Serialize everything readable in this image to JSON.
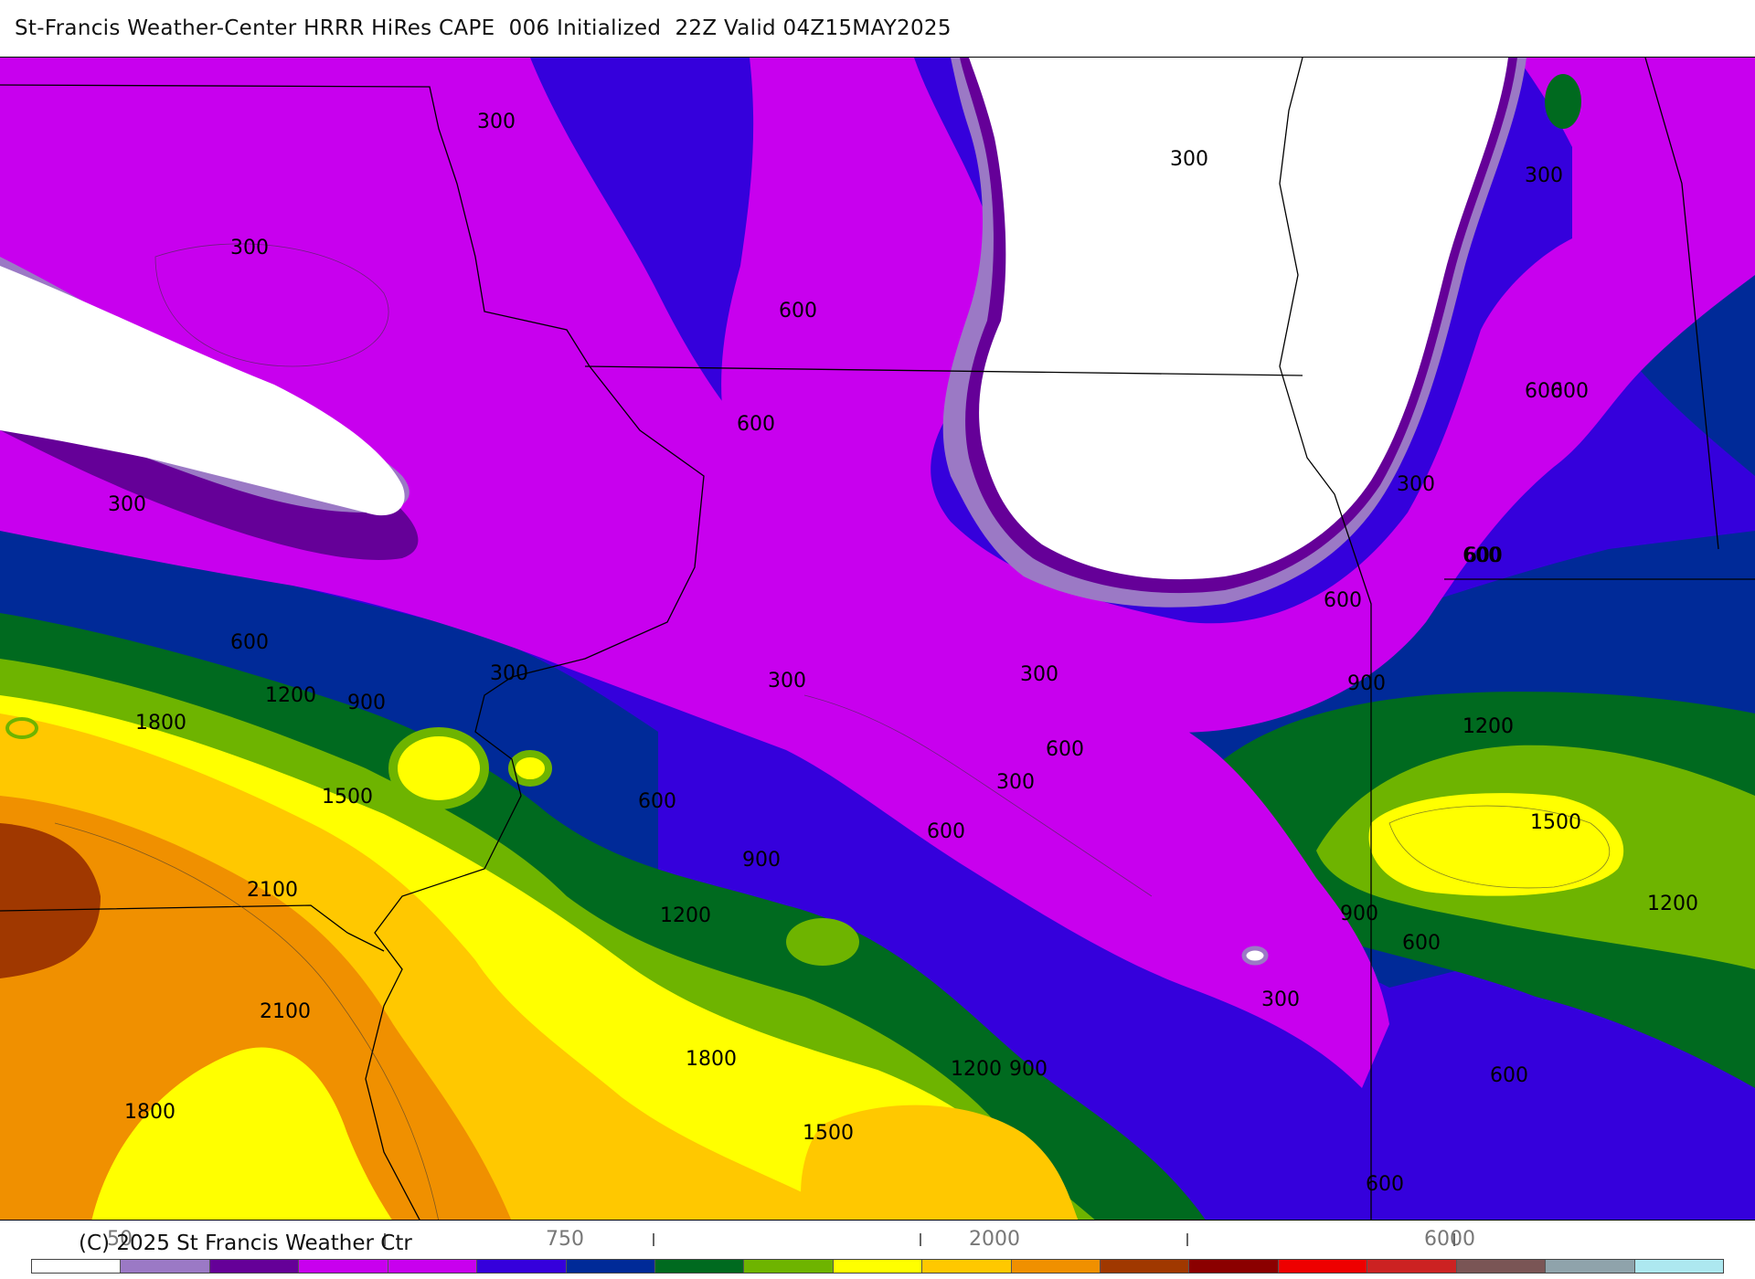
{
  "title": "St-Francis Weather-Center HRRR HiRes CAPE  006 Initialized  22Z Valid 04Z15MAY2025",
  "copyright": "(C) 2025 St Francis Weather Ctr",
  "map": {
    "contour_labels": [
      "300",
      "300",
      "300",
      "600",
      "600",
      "300",
      "600",
      "300",
      "300",
      "300",
      "300",
      "300",
      "300",
      "300",
      "600",
      "600",
      "600",
      "600",
      "600",
      "600",
      "600",
      "600",
      "600",
      "600",
      "600",
      "900",
      "900",
      "900",
      "900",
      "900",
      "1200",
      "1200",
      "1200",
      "1200",
      "1200",
      "1200",
      "1500",
      "1500",
      "1500",
      "1800",
      "1800",
      "1800",
      "2100",
      "2100"
    ]
  },
  "legend": {
    "tick_labels": [
      "50",
      "750",
      "2000",
      "6000"
    ],
    "colors": [
      "#ffffff",
      "#9b79c5",
      "#650098",
      "#c800ee",
      "#c800ee",
      "#3500dc",
      "#002a98",
      "#006a1f",
      "#6eb400",
      "#ffff00",
      "#ffc800",
      "#f09000",
      "#a03800",
      "#8b0000",
      "#ee0000",
      "#cc2222",
      "#7a5555",
      "#8fa3ab",
      "#ade8f0"
    ]
  }
}
